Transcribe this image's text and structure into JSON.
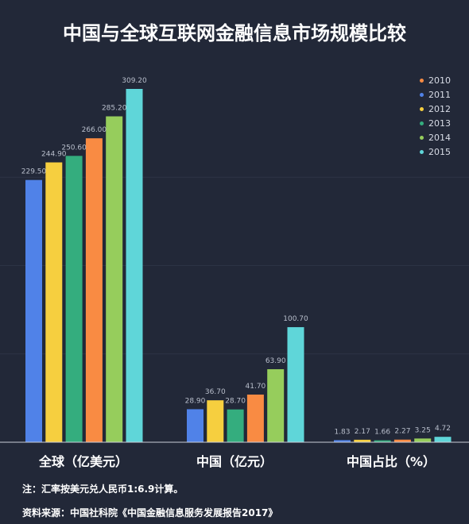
{
  "chart_data": {
    "type": "bar",
    "title": "中国与全球互联网金融信息市场规模比较",
    "categories": [
      "全球（亿美元）",
      "中国（亿元）",
      "中国占比（%）"
    ],
    "series": [
      {
        "name": "2010",
        "color": "#f98b43",
        "values": [
          266.0,
          41.7,
          2.27
        ]
      },
      {
        "name": "2011",
        "color": "#5082e8",
        "values": [
          229.5,
          28.9,
          1.83
        ]
      },
      {
        "name": "2012",
        "color": "#f6cf3f",
        "values": [
          244.9,
          36.7,
          2.17
        ]
      },
      {
        "name": "2013",
        "color": "#34ad7e",
        "values": [
          250.6,
          28.7,
          1.66
        ]
      },
      {
        "name": "2014",
        "color": "#96cd5c",
        "values": [
          285.2,
          63.9,
          3.25
        ]
      },
      {
        "name": "2015",
        "color": "#5fd6d9",
        "values": [
          309.2,
          100.7,
          4.72
        ]
      }
    ],
    "bar_order": [
      "2011",
      "2012",
      "2013",
      "2010",
      "2014",
      "2015"
    ],
    "ylim": [
      0,
      309.2
    ],
    "grid": true,
    "legend_position": "top-right"
  },
  "notes": {
    "line1": "注：汇率按美元兑人民币1:6.9计算。",
    "line2": "资料来源：中国社科院《中国金融信息服务发展报告2017》"
  }
}
